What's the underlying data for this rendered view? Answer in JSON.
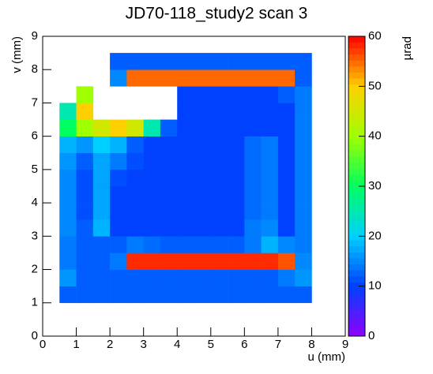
{
  "chart_data": {
    "type": "heatmap",
    "title": "JD70-118_study2 scan 3",
    "x_label": "u (mm)",
    "y_label": "v (mm)",
    "z_label": "µrad",
    "xlim": [
      0,
      9
    ],
    "ylim": [
      0,
      9
    ],
    "zlim": [
      0,
      60
    ],
    "xticks": [
      0,
      1,
      2,
      3,
      4,
      5,
      6,
      7,
      8,
      9
    ],
    "yticks": [
      0,
      1,
      2,
      3,
      4,
      5,
      6,
      7,
      8,
      9
    ],
    "zticks": [
      0,
      10,
      20,
      30,
      40,
      50,
      60
    ],
    "colorscale": [
      "#9000ff",
      "#0040ff",
      "#00d0ff",
      "#00ff60",
      "#a0ff00",
      "#ffd000",
      "#ff0000"
    ],
    "xbins": [
      0,
      0.5,
      1,
      1.5,
      2,
      2.5,
      3,
      3.5,
      4,
      4.5,
      5,
      5.5,
      6,
      6.5,
      7,
      7.5,
      8,
      8.5,
      9
    ],
    "ybins": [
      0,
      0.5,
      1,
      1.5,
      2,
      2.5,
      3,
      3.5,
      4,
      4.5,
      5,
      5.5,
      6,
      6.5,
      7,
      7.5,
      8,
      8.5,
      9
    ],
    "z": [
      [
        null,
        null,
        null,
        null,
        null,
        null,
        null,
        null,
        null,
        null,
        null,
        null,
        null,
        null,
        null,
        null,
        null,
        null
      ],
      [
        null,
        null,
        null,
        null,
        null,
        null,
        null,
        null,
        null,
        null,
        null,
        null,
        null,
        null,
        null,
        null,
        null,
        null
      ],
      [
        null,
        12,
        12,
        12,
        12,
        12,
        12,
        12,
        12,
        12,
        12,
        12,
        12,
        12,
        12,
        12,
        null,
        null
      ],
      [
        null,
        16,
        12,
        12,
        12,
        12,
        12,
        12,
        12,
        12,
        12,
        12,
        12,
        12,
        14,
        16,
        null,
        null
      ],
      [
        null,
        14,
        12,
        12,
        14,
        58,
        58,
        58,
        58,
        58,
        58,
        58,
        58,
        58,
        56,
        15,
        null,
        null
      ],
      [
        null,
        14,
        12,
        12,
        12,
        14,
        13,
        12,
        12,
        12,
        12,
        12,
        14,
        18,
        15,
        14,
        null,
        null
      ],
      [
        null,
        15,
        12,
        18,
        10,
        10,
        10,
        10,
        10,
        10,
        10,
        10,
        14,
        15,
        10,
        14,
        null,
        null
      ],
      [
        null,
        15,
        11,
        17,
        10,
        10,
        10,
        10,
        10,
        10,
        10,
        10,
        13,
        14,
        10,
        14,
        null,
        null
      ],
      [
        null,
        15,
        11,
        17,
        10,
        10,
        10,
        10,
        10,
        10,
        10,
        10,
        13,
        14,
        10,
        14,
        null,
        null
      ],
      [
        null,
        15,
        11,
        17,
        11,
        10,
        10,
        10,
        10,
        10,
        10,
        10,
        13,
        14,
        10,
        14,
        null,
        null
      ],
      [
        null,
        16,
        12,
        17,
        14,
        11,
        10,
        10,
        10,
        10,
        10,
        10,
        13,
        14,
        10,
        14,
        null,
        null
      ],
      [
        null,
        18,
        16,
        20,
        18,
        12,
        10,
        10,
        10,
        10,
        10,
        10,
        13,
        14,
        10,
        14,
        null,
        null
      ],
      [
        null,
        30,
        40,
        45,
        50,
        45,
        25,
        12,
        10,
        10,
        10,
        10,
        10,
        10,
        10,
        14,
        null,
        null
      ],
      [
        null,
        25,
        50,
        null,
        null,
        null,
        null,
        null,
        10,
        10,
        10,
        10,
        10,
        10,
        10,
        14,
        null,
        null
      ],
      [
        null,
        null,
        40,
        null,
        null,
        null,
        null,
        null,
        10,
        10,
        10,
        10,
        10,
        10,
        12,
        14,
        null,
        null
      ],
      [
        null,
        null,
        null,
        null,
        15,
        55,
        55,
        55,
        55,
        55,
        55,
        55,
        55,
        55,
        55,
        12,
        null,
        null
      ],
      [
        null,
        null,
        null,
        null,
        12,
        12,
        12,
        12,
        12,
        12,
        12,
        12,
        12,
        12,
        12,
        12,
        null,
        null
      ],
      [
        null,
        null,
        null,
        null,
        null,
        null,
        null,
        null,
        null,
        null,
        null,
        null,
        null,
        null,
        null,
        null,
        null,
        null
      ]
    ]
  }
}
